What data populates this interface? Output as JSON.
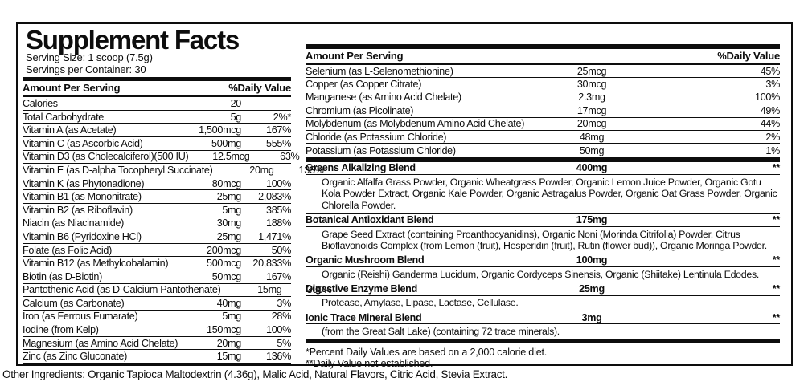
{
  "title": "Supplement Facts",
  "serving_size": "Serving Size: 1 scoop (7.5g)",
  "servings_per_container": "Servings per Container: 30",
  "colors": {
    "ink": "#0d0d0d",
    "background": "#ffffff"
  },
  "left_table": {
    "header": {
      "amount": "Amount Per Serving",
      "dv": "%Daily Value"
    },
    "rows": [
      {
        "name": "Calories",
        "amt": "20",
        "dv": ""
      },
      {
        "name": "Total Carbohydrate",
        "amt": "5g",
        "dv": "2%*"
      },
      {
        "name": "Vitamin A (as Acetate)",
        "amt": "1,500mcg",
        "dv": "167%"
      },
      {
        "name": "Vitamin C (as Ascorbic Acid)",
        "amt": "500mg",
        "dv": "555%"
      },
      {
        "name": "Vitamin D3 (as Cholecalciferol)(500 IU)",
        "amt": "12.5mcg",
        "dv": "63%"
      },
      {
        "name": "Vitamin E (as D-alpha Tocopheryl Succinate)",
        "amt": "20mg",
        "dv": "133%"
      },
      {
        "name": "Vitamin K (as Phytonadione)",
        "amt": "80mcg",
        "dv": "100%"
      },
      {
        "name": "Vitamin B1 (as Mononitrate)",
        "amt": "25mg",
        "dv": "2,083%"
      },
      {
        "name": "Vitamin B2 (as Riboflavin)",
        "amt": "5mg",
        "dv": "385%"
      },
      {
        "name": "Niacin (as Niacinamide)",
        "amt": "30mg",
        "dv": "188%"
      },
      {
        "name": "Vitamin B6 (Pyridoxine HCl)",
        "amt": "25mg",
        "dv": "1,471%"
      },
      {
        "name": "Folate (as Folic Acid)",
        "amt": "200mcg",
        "dv": "50%"
      },
      {
        "name": "Vitamin B12 (as Methylcobalamin)",
        "amt": "500mcg",
        "dv": "20,833%"
      },
      {
        "name": "Biotin (as D-Biotin)",
        "amt": "50mcg",
        "dv": "167%"
      },
      {
        "name": "Pantothenic Acid (as D-Calcium Pantothenate)",
        "amt": "15mg",
        "dv": "300%"
      },
      {
        "name": "Calcium (as Carbonate)",
        "amt": "40mg",
        "dv": "3%"
      },
      {
        "name": "Iron (as Ferrous Fumarate)",
        "amt": "5mg",
        "dv": "28%"
      },
      {
        "name": "Iodine (from Kelp)",
        "amt": "150mcg",
        "dv": "100%"
      },
      {
        "name": "Magnesium (as Amino Acid Chelate)",
        "amt": "20mg",
        "dv": "5%"
      },
      {
        "name": "Zinc (as Zinc Gluconate)",
        "amt": "15mg",
        "dv": "136%"
      }
    ]
  },
  "right_table": {
    "header": {
      "amount": "Amount Per Serving",
      "dv": "%Daily Value"
    },
    "rows": [
      {
        "name": "Selenium (as L-Selenomethionine)",
        "amt": "25mcg",
        "dv": "45%"
      },
      {
        "name": "Copper (as Copper Citrate)",
        "amt": "30mcg",
        "dv": "3%"
      },
      {
        "name": "Manganese (as Amino Acid Chelate)",
        "amt": "2.3mg",
        "dv": "100%"
      },
      {
        "name": "Chromium (as Picolinate)",
        "amt": "17mcg",
        "dv": "49%"
      },
      {
        "name": "Molybdenum (as Molybdenum Amino Acid Chelate)",
        "amt": "20mcg",
        "dv": "44%"
      },
      {
        "name": "Chloride (as Potassium Chloride)",
        "amt": "48mg",
        "dv": "2%"
      },
      {
        "name": "Potassium (as Potassium Chloride)",
        "amt": "50mg",
        "dv": "1%"
      }
    ],
    "blends": [
      {
        "name": "Greens Alkalizing Blend",
        "amt": "400mg",
        "dv": "**",
        "ingredients": "Organic Alfalfa Grass Powder, Organic Wheatgrass Powder, Organic Lemon Juice Powder, Organic Gotu Kola Powder Extract, Organic Kale Powder, Organic Astragalus Powder, Organic Oat Grass Powder, Organic Chlorella Powder."
      },
      {
        "name": "Botanical Antioxidant Blend",
        "amt": "175mg",
        "dv": "**",
        "ingredients": "Grape Seed Extract (containing Proanthocyanidins), Organic Noni (Morinda Citrifolia) Powder, Citrus Bioflavonoids Complex (from Lemon (fruit), Hesperidin (fruit), Rutin (flower bud)), Organic Moringa Powder."
      },
      {
        "name": "Organic Mushroom Blend",
        "amt": "100mg",
        "dv": "**",
        "ingredients": "Organic (Reishi) Ganderma Lucidum, Organic Cordyceps Sinensis, Organic (Shiitake) Lentinula Edodes."
      },
      {
        "name": "Digestive Enzyme Blend",
        "amt": "25mg",
        "dv": "**",
        "ingredients": "Protease, Amylase, Lipase, Lactase, Cellulase."
      },
      {
        "name": "Ionic Trace Mineral Blend",
        "amt": "3mg",
        "dv": "**",
        "ingredients": "(from the Great Salt Lake) (containing 72 trace minerals)."
      }
    ],
    "footnotes": [
      "*Percent Daily Values are based on a 2,000 calorie diet.",
      "**Daily Value not established."
    ]
  },
  "other_ingredients": "Other Ingredients: Organic Tapioca Maltodextrin (4.36g), Malic Acid, Natural Flavors, Citric Acid, Stevia Extract."
}
